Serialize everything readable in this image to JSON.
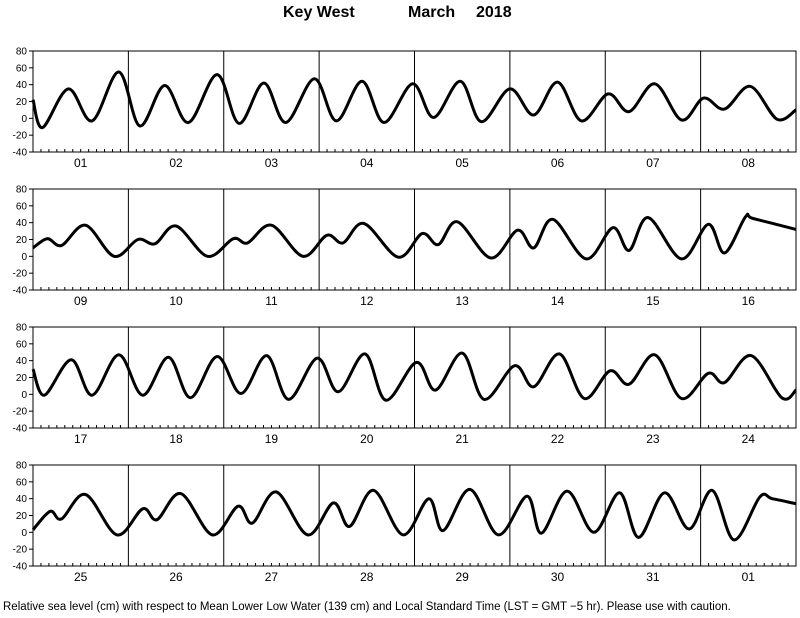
{
  "title": {
    "station": "Key West",
    "month": "March",
    "year": "2018"
  },
  "footnote": "Relative sea level (cm) with respect to Mean Lower Low Water (139 cm) and Local Standard Time (LST = GMT −5 hr). Please use with caution.",
  "chart_data": {
    "type": "line",
    "title": "Key West March 2018",
    "ylabel": "",
    "xlabel": "",
    "ylim": [
      -40,
      80
    ],
    "yticks": [
      -40,
      -20,
      0,
      20,
      40,
      60,
      80
    ],
    "grid": "vertical day separators only",
    "panels": [
      {
        "day_labels": [
          "01",
          "02",
          "03",
          "04",
          "05",
          "06",
          "07",
          "08"
        ],
        "series": [
          {
            "points": [
              [
                0,
                22
              ],
              [
                0.1,
                -11
              ],
              [
                0.37,
                35
              ],
              [
                0.62,
                -3
              ],
              [
                0.9,
                55
              ],
              [
                1.12,
                -9
              ],
              [
                1.38,
                39
              ],
              [
                1.63,
                -5
              ],
              [
                1.93,
                52
              ],
              [
                2.16,
                -6
              ],
              [
                2.42,
                42
              ],
              [
                2.65,
                -5
              ],
              [
                2.95,
                47
              ],
              [
                3.18,
                -3
              ],
              [
                3.45,
                44
              ],
              [
                3.68,
                -5
              ],
              [
                3.98,
                41
              ],
              [
                4.2,
                1
              ],
              [
                4.48,
                44
              ],
              [
                4.7,
                -4
              ],
              [
                5,
                35
              ],
              [
                5.25,
                4
              ],
              [
                5.5,
                43
              ],
              [
                5.75,
                -3
              ],
              [
                6.03,
                29
              ],
              [
                6.25,
                8
              ],
              [
                6.52,
                41
              ],
              [
                6.8,
                -2
              ],
              [
                7.03,
                24
              ],
              [
                7.25,
                11
              ],
              [
                7.52,
                38
              ],
              [
                7.8,
                -1
              ],
              [
                8,
                10
              ]
            ]
          }
        ]
      },
      {
        "day_labels": [
          "09",
          "10",
          "11",
          "12",
          "13",
          "14",
          "15",
          "16"
        ],
        "series": [
          {
            "points": [
              [
                0,
                10
              ],
              [
                0.15,
                21
              ],
              [
                0.3,
                13
              ],
              [
                0.55,
                37
              ],
              [
                0.85,
                0
              ],
              [
                1.1,
                20
              ],
              [
                1.28,
                15
              ],
              [
                1.5,
                36
              ],
              [
                1.83,
                0
              ],
              [
                2.1,
                21
              ],
              [
                2.25,
                16
              ],
              [
                2.5,
                37
              ],
              [
                2.83,
                0
              ],
              [
                3.08,
                25
              ],
              [
                3.25,
                16
              ],
              [
                3.47,
                39
              ],
              [
                3.83,
                -1
              ],
              [
                4.08,
                27
              ],
              [
                4.25,
                14
              ],
              [
                4.45,
                41
              ],
              [
                4.8,
                -2
              ],
              [
                5.08,
                31
              ],
              [
                5.25,
                10
              ],
              [
                5.45,
                44
              ],
              [
                5.8,
                -3
              ],
              [
                6.08,
                34
              ],
              [
                6.25,
                7
              ],
              [
                6.45,
                46
              ],
              [
                6.8,
                -3
              ],
              [
                7.08,
                38
              ],
              [
                7.25,
                4
              ],
              [
                7.47,
                47
              ],
              [
                7.55,
                45
              ],
              [
                8,
                32
              ]
            ]
          }
        ]
      },
      {
        "day_labels": [
          "17",
          "18",
          "19",
          "20",
          "21",
          "22",
          "23",
          "24"
        ],
        "series": [
          {
            "points": [
              [
                0,
                30
              ],
              [
                0.12,
                -1
              ],
              [
                0.4,
                41
              ],
              [
                0.62,
                -1
              ],
              [
                0.9,
                47
              ],
              [
                1.15,
                -1
              ],
              [
                1.42,
                44
              ],
              [
                1.65,
                -4
              ],
              [
                1.93,
                45
              ],
              [
                2.18,
                1
              ],
              [
                2.45,
                46
              ],
              [
                2.68,
                -6
              ],
              [
                2.98,
                43
              ],
              [
                3.2,
                3
              ],
              [
                3.48,
                48
              ],
              [
                3.7,
                -7
              ],
              [
                4.02,
                38
              ],
              [
                4.22,
                5
              ],
              [
                4.5,
                49
              ],
              [
                4.73,
                -6
              ],
              [
                5.05,
                34
              ],
              [
                5.25,
                9
              ],
              [
                5.52,
                48
              ],
              [
                5.78,
                -5
              ],
              [
                6.05,
                28
              ],
              [
                6.25,
                12
              ],
              [
                6.52,
                47
              ],
              [
                6.8,
                -5
              ],
              [
                7.08,
                25
              ],
              [
                7.25,
                14
              ],
              [
                7.53,
                46
              ],
              [
                7.85,
                -4
              ],
              [
                8,
                5
              ]
            ]
          }
        ]
      },
      {
        "day_labels": [
          "25",
          "26",
          "27",
          "28",
          "29",
          "30",
          "31",
          "01"
        ],
        "series": [
          {
            "points": [
              [
                0,
                3
              ],
              [
                0.18,
                25
              ],
              [
                0.3,
                16
              ],
              [
                0.55,
                45
              ],
              [
                0.88,
                -3
              ],
              [
                1.15,
                28
              ],
              [
                1.3,
                15
              ],
              [
                1.55,
                46
              ],
              [
                1.88,
                -3
              ],
              [
                2.15,
                31
              ],
              [
                2.3,
                11
              ],
              [
                2.55,
                48
              ],
              [
                2.88,
                -3
              ],
              [
                3.15,
                35
              ],
              [
                3.32,
                7
              ],
              [
                3.57,
                50
              ],
              [
                3.88,
                -3
              ],
              [
                4.15,
                40
              ],
              [
                4.3,
                2
              ],
              [
                4.58,
                51
              ],
              [
                4.88,
                -3
              ],
              [
                5.18,
                43
              ],
              [
                5.33,
                -1
              ],
              [
                5.6,
                49
              ],
              [
                5.88,
                0
              ],
              [
                6.15,
                47
              ],
              [
                6.35,
                -6
              ],
              [
                6.62,
                47
              ],
              [
                6.88,
                4
              ],
              [
                7.12,
                50
              ],
              [
                7.35,
                -9
              ],
              [
                7.62,
                42
              ],
              [
                7.75,
                40
              ],
              [
                8,
                34
              ]
            ]
          }
        ]
      }
    ]
  }
}
